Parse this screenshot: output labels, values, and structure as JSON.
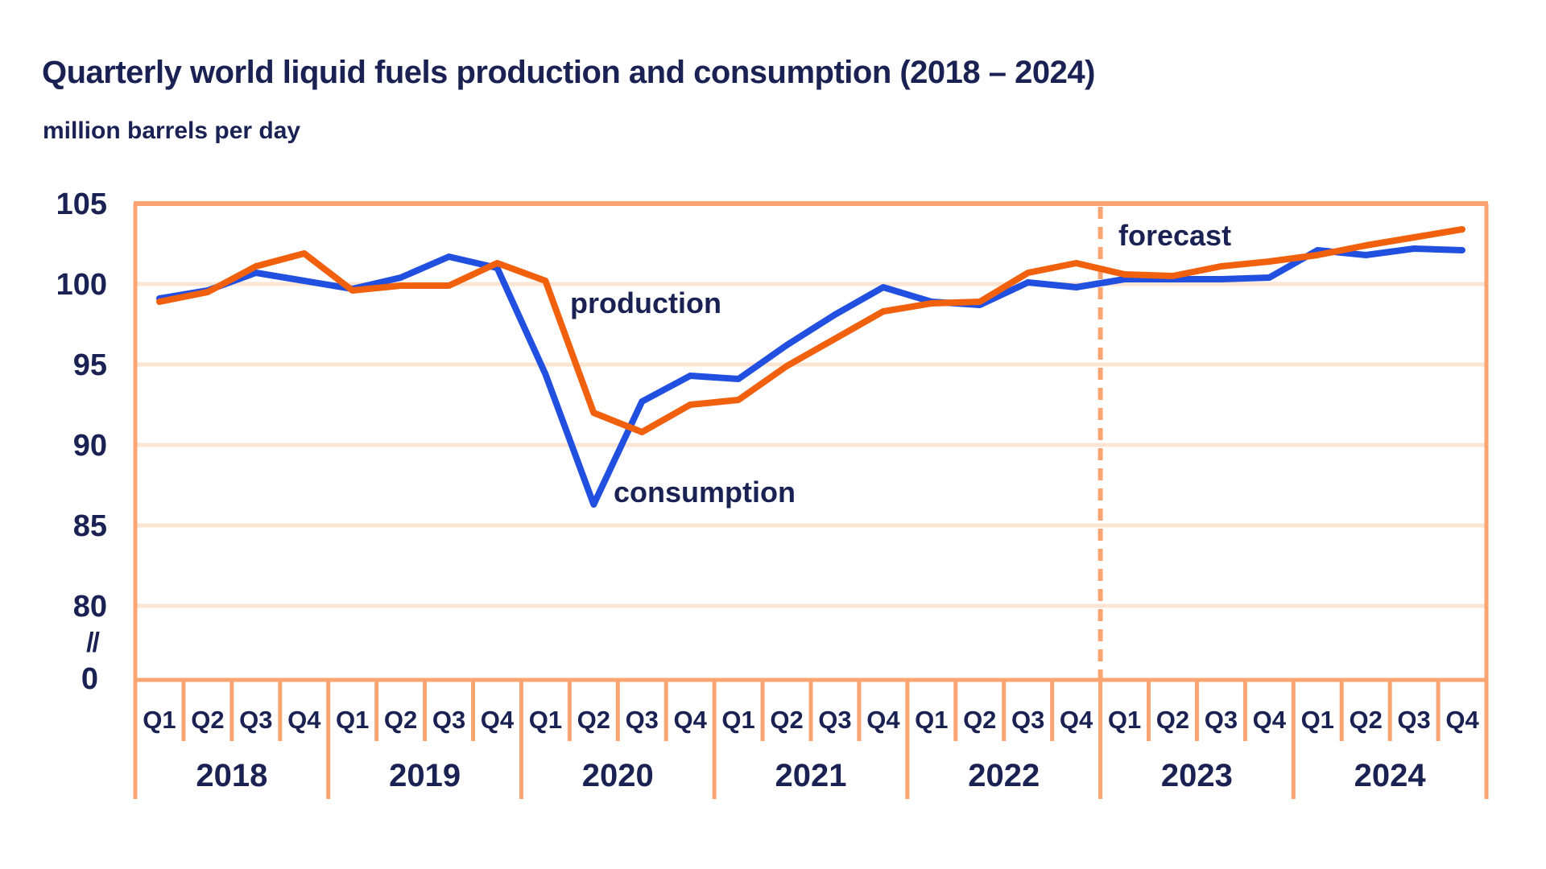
{
  "title": "Quarterly world liquid fuels production and consumption (2018 – 2024)",
  "subtitle": "million barrels per day",
  "colors": {
    "navy": "#1a2153",
    "production": "#f1600d",
    "consumption": "#2150e0",
    "axis": "#f9a471",
    "grid": "#fce4d2",
    "background": "#ffffff"
  },
  "chart_data": {
    "type": "line",
    "title": "Quarterly world liquid fuels production and consumption (2018 – 2024)",
    "ylabel": "million barrels per day",
    "years": [
      "2018",
      "2019",
      "2020",
      "2021",
      "2022",
      "2023",
      "2024"
    ],
    "quarter_labels": [
      "Q1",
      "Q2",
      "Q3",
      "Q4"
    ],
    "y_ticks": [
      105,
      100,
      95,
      90,
      85,
      80
    ],
    "y_zero_label": "0",
    "axis_break_symbol": "//",
    "ylim_main": [
      80,
      105
    ],
    "grid": "horizontal",
    "forecast_start_index": 20,
    "annotations": {
      "production": "production",
      "consumption": "consumption",
      "forecast": "forecast"
    },
    "series": [
      {
        "name": "production",
        "color_key": "production",
        "values": [
          98.9,
          99.5,
          101.1,
          101.9,
          99.6,
          99.9,
          99.9,
          101.3,
          100.2,
          92.0,
          90.8,
          92.5,
          92.8,
          94.9,
          96.6,
          98.3,
          98.8,
          98.9,
          100.7,
          101.3,
          100.6,
          100.5,
          101.1,
          101.4,
          101.8,
          102.4,
          102.9,
          103.4
        ]
      },
      {
        "name": "consumption",
        "color_key": "consumption",
        "values": [
          99.1,
          99.6,
          100.7,
          100.2,
          99.7,
          100.4,
          101.7,
          101.0,
          94.4,
          86.3,
          92.7,
          94.3,
          94.1,
          96.2,
          98.1,
          99.8,
          98.9,
          98.7,
          100.1,
          99.8,
          100.3,
          100.3,
          100.3,
          100.4,
          102.1,
          101.8,
          102.2,
          102.1
        ]
      }
    ]
  }
}
